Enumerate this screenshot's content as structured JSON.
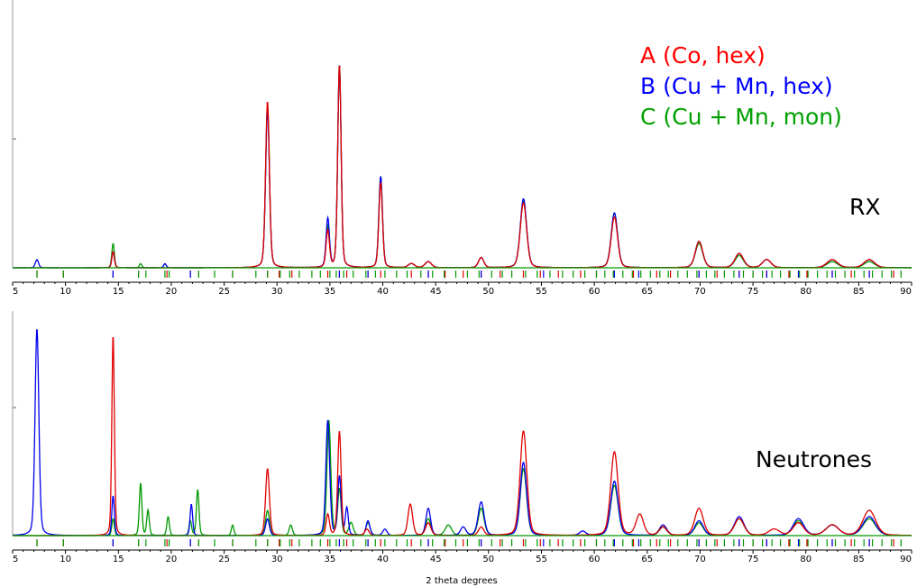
{
  "xlabel": "2 theta degrees",
  "xlim": [
    5,
    90
  ],
  "x_ticks": [
    5,
    10,
    15,
    20,
    25,
    30,
    35,
    40,
    45,
    50,
    55,
    60,
    65,
    70,
    75,
    80,
    85,
    90
  ],
  "legend": [
    {
      "text": "A (Co, hex)",
      "color": "#ff0000"
    },
    {
      "text": "B (Cu + Mn, hex)",
      "color": "#0000ff"
    },
    {
      "text": "C (Cu + Mn, mon)",
      "color": "#00a000"
    }
  ],
  "colors": {
    "A": "#e00000",
    "B": "#0000ee",
    "C": "#009900"
  },
  "chart_data": [
    {
      "type": "line",
      "label": "RX",
      "xlabel": "",
      "ylabel": "",
      "xlim": [
        5,
        90
      ],
      "ylim": [
        0,
        1
      ],
      "grid": false,
      "legend_position": "top-right",
      "baseline": 0.02,
      "series": [
        {
          "name": "A (Co, hex)",
          "key": "A",
          "peaks": [
            [
              14.5,
              0.08,
              0.12
            ],
            [
              29.1,
              0.82,
              0.18
            ],
            [
              34.8,
              0.18,
              0.16
            ],
            [
              35.9,
              1.0,
              0.16
            ],
            [
              39.8,
              0.42,
              0.17
            ],
            [
              42.7,
              0.02,
              0.3
            ],
            [
              44.3,
              0.03,
              0.3
            ],
            [
              49.3,
              0.05,
              0.25
            ],
            [
              53.3,
              0.32,
              0.3
            ],
            [
              61.9,
              0.25,
              0.3
            ],
            [
              69.9,
              0.13,
              0.35
            ],
            [
              73.7,
              0.07,
              0.4
            ],
            [
              76.3,
              0.04,
              0.4
            ],
            [
              82.5,
              0.04,
              0.5
            ],
            [
              86.0,
              0.04,
              0.5
            ]
          ]
        },
        {
          "name": "B (Cu + Mn, hex)",
          "key": "B",
          "peaks": [
            [
              7.3,
              0.04,
              0.15
            ],
            [
              14.5,
              0.08,
              0.12
            ],
            [
              19.4,
              0.02,
              0.12
            ],
            [
              29.1,
              0.78,
              0.18
            ],
            [
              34.8,
              0.24,
              0.16
            ],
            [
              35.9,
              1.0,
              0.16
            ],
            [
              39.8,
              0.45,
              0.17
            ],
            [
              42.7,
              0.02,
              0.3
            ],
            [
              44.3,
              0.03,
              0.3
            ],
            [
              49.3,
              0.05,
              0.25
            ],
            [
              53.3,
              0.34,
              0.3
            ],
            [
              61.9,
              0.27,
              0.3
            ],
            [
              69.9,
              0.13,
              0.35
            ],
            [
              73.7,
              0.07,
              0.4
            ],
            [
              76.3,
              0.04,
              0.4
            ],
            [
              82.5,
              0.04,
              0.5
            ],
            [
              86.0,
              0.04,
              0.5
            ]
          ]
        },
        {
          "name": "C (Cu + Mn, mon)",
          "key": "C",
          "peaks": [
            [
              14.5,
              0.12,
              0.12
            ],
            [
              17.1,
              0.02,
              0.12
            ],
            [
              19.4,
              0.02,
              0.12
            ],
            [
              29.1,
              0.8,
              0.18
            ],
            [
              34.8,
              0.2,
              0.16
            ],
            [
              35.9,
              1.0,
              0.16
            ],
            [
              39.8,
              0.45,
              0.17
            ],
            [
              42.7,
              0.02,
              0.3
            ],
            [
              44.3,
              0.03,
              0.3
            ],
            [
              49.3,
              0.05,
              0.25
            ],
            [
              53.3,
              0.33,
              0.3
            ],
            [
              61.9,
              0.27,
              0.3
            ],
            [
              69.9,
              0.12,
              0.35
            ],
            [
              73.7,
              0.06,
              0.4
            ],
            [
              76.3,
              0.04,
              0.4
            ],
            [
              82.5,
              0.03,
              0.5
            ],
            [
              86.0,
              0.03,
              0.5
            ]
          ]
        }
      ],
      "ticks": {
        "A": [
          7.3,
          9.8,
          14.5,
          16.9,
          19.6,
          21.8,
          22.6,
          25.8,
          29.1,
          30.2,
          31.4,
          34.8,
          35.9,
          36.6,
          38.6,
          39.8,
          42.7,
          44.3,
          45.9,
          47.6,
          49.3,
          51.1,
          53.3,
          54.9,
          56.6,
          58.7,
          60.2,
          61.9,
          63.7,
          65.9,
          67.2,
          69.9,
          71.6,
          73.7,
          75.0,
          76.3,
          78.4,
          80.1,
          82.5,
          84.3,
          86.0,
          88.3
        ],
        "B": [
          14.5,
          21.8,
          35.9,
          38.6,
          44.3,
          49.3,
          55.2,
          61.9,
          64.2,
          69.9,
          73.7,
          76.3,
          79.3,
          82.5,
          86.0
        ],
        "C": [
          7.3,
          9.8,
          14.5,
          16.9,
          17.6,
          19.4,
          19.8,
          21.8,
          22.6,
          24.1,
          25.8,
          28.0,
          29.1,
          30.3,
          31.2,
          32.1,
          33.3,
          34.1,
          35.0,
          35.6,
          36.3,
          37.2,
          38.4,
          39.3,
          40.2,
          41.3,
          42.3,
          43.6,
          44.7,
          45.8,
          46.9,
          48.0,
          49.1,
          50.3,
          51.3,
          52.2,
          53.5,
          54.6,
          55.8,
          57.0,
          58.0,
          59.1,
          60.2,
          61.0,
          61.8,
          62.7,
          63.6,
          64.4,
          65.3,
          66.2,
          67.0,
          67.9,
          68.8,
          69.7,
          70.6,
          71.4,
          72.3,
          73.2,
          74.1,
          75.0,
          75.9,
          76.8,
          77.6,
          78.5,
          79.4,
          80.2,
          81.1,
          82.0,
          82.8,
          83.7,
          84.6,
          85.5,
          86.3,
          87.2,
          88.1,
          89.0
        ]
      }
    },
    {
      "type": "line",
      "label": "Neutrones",
      "xlabel": "2 theta degrees",
      "ylabel": "",
      "xlim": [
        5,
        90
      ],
      "ylim": [
        0,
        1
      ],
      "grid": false,
      "baseline": 0.01,
      "series": [
        {
          "name": "A (Co, hex)",
          "key": "A",
          "peaks": [
            [
              14.5,
              0.96,
              0.12
            ],
            [
              29.1,
              0.32,
              0.18
            ],
            [
              34.8,
              0.1,
              0.16
            ],
            [
              35.9,
              0.5,
              0.16
            ],
            [
              38.5,
              0.03,
              0.2
            ],
            [
              42.6,
              0.15,
              0.22
            ],
            [
              44.3,
              0.06,
              0.25
            ],
            [
              49.3,
              0.04,
              0.25
            ],
            [
              53.3,
              0.5,
              0.32
            ],
            [
              61.9,
              0.4,
              0.35
            ],
            [
              64.3,
              0.1,
              0.35
            ],
            [
              66.5,
              0.04,
              0.35
            ],
            [
              69.9,
              0.13,
              0.4
            ],
            [
              73.7,
              0.08,
              0.45
            ],
            [
              77.0,
              0.03,
              0.5
            ],
            [
              79.3,
              0.06,
              0.5
            ],
            [
              82.5,
              0.05,
              0.6
            ],
            [
              86.0,
              0.12,
              0.6
            ]
          ]
        },
        {
          "name": "B (Cu + Mn, hex)",
          "key": "B",
          "peaks": [
            [
              7.3,
              0.99,
              0.18
            ],
            [
              14.5,
              0.19,
              0.12
            ],
            [
              21.9,
              0.15,
              0.12
            ],
            [
              29.1,
              0.08,
              0.18
            ],
            [
              34.8,
              0.55,
              0.18
            ],
            [
              35.9,
              0.28,
              0.16
            ],
            [
              36.6,
              0.13,
              0.14
            ],
            [
              38.6,
              0.07,
              0.18
            ],
            [
              40.2,
              0.03,
              0.2
            ],
            [
              44.3,
              0.13,
              0.22
            ],
            [
              47.6,
              0.04,
              0.25
            ],
            [
              49.3,
              0.16,
              0.28
            ],
            [
              53.3,
              0.35,
              0.3
            ],
            [
              58.9,
              0.02,
              0.3
            ],
            [
              61.9,
              0.26,
              0.35
            ],
            [
              66.5,
              0.05,
              0.35
            ],
            [
              69.9,
              0.07,
              0.4
            ],
            [
              73.7,
              0.09,
              0.45
            ],
            [
              79.3,
              0.08,
              0.5
            ],
            [
              82.5,
              0.05,
              0.6
            ],
            [
              86.0,
              0.09,
              0.6
            ]
          ]
        },
        {
          "name": "C (Cu + Mn, mon)",
          "key": "C",
          "peaks": [
            [
              14.5,
              0.08,
              0.12
            ],
            [
              17.1,
              0.25,
              0.12
            ],
            [
              17.8,
              0.12,
              0.12
            ],
            [
              19.7,
              0.09,
              0.12
            ],
            [
              21.8,
              0.07,
              0.12
            ],
            [
              22.5,
              0.22,
              0.12
            ],
            [
              25.8,
              0.05,
              0.12
            ],
            [
              29.1,
              0.12,
              0.18
            ],
            [
              31.3,
              0.05,
              0.15
            ],
            [
              34.9,
              0.55,
              0.18
            ],
            [
              35.9,
              0.22,
              0.16
            ],
            [
              37.0,
              0.06,
              0.2
            ],
            [
              38.6,
              0.06,
              0.2
            ],
            [
              44.3,
              0.08,
              0.25
            ],
            [
              46.2,
              0.05,
              0.3
            ],
            [
              49.3,
              0.13,
              0.28
            ],
            [
              53.3,
              0.32,
              0.3
            ],
            [
              61.9,
              0.24,
              0.35
            ],
            [
              66.5,
              0.04,
              0.35
            ],
            [
              69.9,
              0.06,
              0.4
            ],
            [
              73.7,
              0.08,
              0.45
            ],
            [
              79.3,
              0.07,
              0.5
            ],
            [
              82.5,
              0.05,
              0.6
            ],
            [
              86.0,
              0.08,
              0.6
            ]
          ]
        }
      ],
      "ticks": {
        "A": [
          7.3,
          9.8,
          14.5,
          16.9,
          19.6,
          21.8,
          22.6,
          25.8,
          29.1,
          30.2,
          31.4,
          34.8,
          35.9,
          36.6,
          38.6,
          39.8,
          42.7,
          44.3,
          45.9,
          47.6,
          49.3,
          51.1,
          53.3,
          54.9,
          56.6,
          58.7,
          60.2,
          61.9,
          63.7,
          65.9,
          67.2,
          69.9,
          71.6,
          73.7,
          75.0,
          76.3,
          78.4,
          80.1,
          82.5,
          84.3,
          86.0,
          88.3
        ],
        "B": [
          14.5,
          21.8,
          35.9,
          38.6,
          44.3,
          49.3,
          55.2,
          61.9,
          64.2,
          69.9,
          73.7,
          76.3,
          79.3,
          82.5,
          86.0
        ],
        "C": [
          7.3,
          9.8,
          14.5,
          16.9,
          17.6,
          19.4,
          19.8,
          21.8,
          22.6,
          24.1,
          25.8,
          28.0,
          29.1,
          30.3,
          31.2,
          32.1,
          33.3,
          34.1,
          35.0,
          35.6,
          36.3,
          37.2,
          38.4,
          39.3,
          40.2,
          41.3,
          42.3,
          43.6,
          44.7,
          45.8,
          46.9,
          48.0,
          49.1,
          50.3,
          51.3,
          52.2,
          53.5,
          54.6,
          55.8,
          57.0,
          58.0,
          59.1,
          60.2,
          61.0,
          61.8,
          62.7,
          63.6,
          64.4,
          65.3,
          66.2,
          67.0,
          67.9,
          68.8,
          69.7,
          70.6,
          71.4,
          72.3,
          73.2,
          74.1,
          75.0,
          75.9,
          76.8,
          77.6,
          78.5,
          79.4,
          80.2,
          81.1,
          82.0,
          82.8,
          83.7,
          84.6,
          85.5,
          86.3,
          87.2,
          88.1,
          89.0
        ]
      }
    }
  ]
}
